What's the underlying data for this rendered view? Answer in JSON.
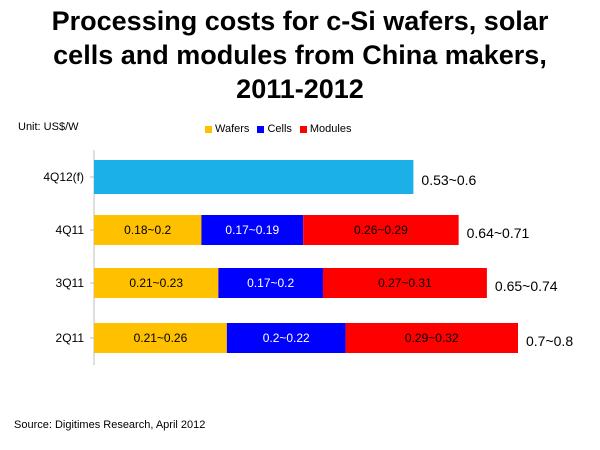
{
  "title_lines": [
    "Processing costs for c-Si wafers, solar",
    "cells and modules from China makers,",
    "2011-2012"
  ],
  "unit_label": "Unit: US$/W",
  "source": "Source: Digitimes Research, April 2012",
  "legend": [
    {
      "label": "Wafers",
      "color": "#FFC000"
    },
    {
      "label": "Cells",
      "color": "#0000FF"
    },
    {
      "label": "Modules",
      "color": "#FF0000"
    }
  ],
  "chart_data": {
    "type": "bar",
    "orientation": "horizontal",
    "stacked": true,
    "categories": [
      "4Q12(f)",
      "4Q11",
      "3Q11",
      "2Q11"
    ],
    "series": [
      {
        "name": "Wafers",
        "color": "#FFC000",
        "values": [
          null,
          0.19,
          0.22,
          0.235
        ],
        "labels": [
          "",
          "0.18~0.2",
          "0.21~0.23",
          "0.21~0.26"
        ]
      },
      {
        "name": "Cells",
        "color": "#0000FF",
        "values": [
          null,
          0.18,
          0.185,
          0.21
        ],
        "labels": [
          "",
          "0.17~0.19",
          "0.17~0.2",
          "0.2~0.22"
        ]
      },
      {
        "name": "Modules",
        "color": "#FF0000",
        "values": [
          null,
          0.275,
          0.29,
          0.305
        ],
        "labels": [
          "",
          "0.26~0.29",
          "0.27~0.31",
          "0.29~0.32"
        ]
      }
    ],
    "totals": {
      "values": [
        0.565,
        0.645,
        0.695,
        0.75
      ],
      "labels": [
        "0.53~0.6",
        "0.64~0.71",
        "0.65~0.74",
        "0.7~0.8"
      ],
      "single_bar_color": "#1BB0E8"
    },
    "xlim": [
      0,
      0.75
    ],
    "grid": false
  }
}
